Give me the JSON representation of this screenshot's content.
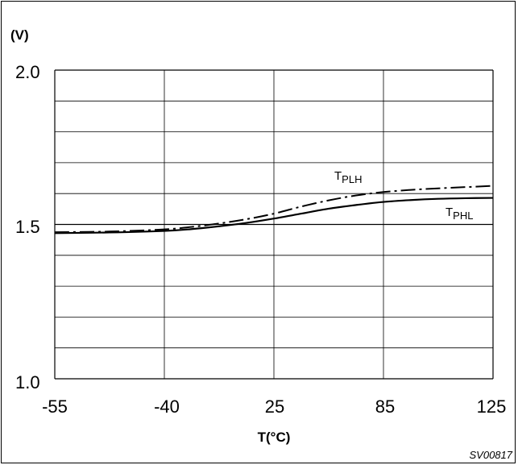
{
  "chart_data": {
    "type": "line",
    "ylabel": "(V)",
    "xlabel": "T(°C)",
    "x_ticks": [
      "-55",
      "-40",
      "25",
      "85",
      "125"
    ],
    "y_ticks": [
      "2.0",
      "1.5",
      "1.0"
    ],
    "ylim": [
      1.0,
      2.0
    ],
    "x_index": [
      0,
      1,
      2,
      3,
      4
    ],
    "grid": true,
    "code": "SV00817",
    "series": [
      {
        "name": "T",
        "sub": "PLH",
        "style": "dashed",
        "x_pos": [
          0,
          0.5,
          1.0,
          1.25,
          1.5,
          1.75,
          2.0,
          2.25,
          2.5,
          2.75,
          3.0,
          3.25,
          3.5,
          3.75,
          4.0
        ],
        "values": [
          1.475,
          1.477,
          1.484,
          1.492,
          1.503,
          1.517,
          1.535,
          1.558,
          1.578,
          1.594,
          1.605,
          1.612,
          1.617,
          1.621,
          1.625
        ]
      },
      {
        "name": "T",
        "sub": "PHL",
        "style": "solid",
        "x_pos": [
          0,
          0.5,
          1.0,
          1.25,
          1.5,
          1.75,
          2.0,
          2.25,
          2.5,
          2.75,
          3.0,
          3.25,
          3.5,
          3.75,
          4.0
        ],
        "values": [
          1.472,
          1.474,
          1.479,
          1.485,
          1.494,
          1.505,
          1.519,
          1.535,
          1.551,
          1.563,
          1.573,
          1.579,
          1.583,
          1.585,
          1.586
        ]
      }
    ]
  }
}
